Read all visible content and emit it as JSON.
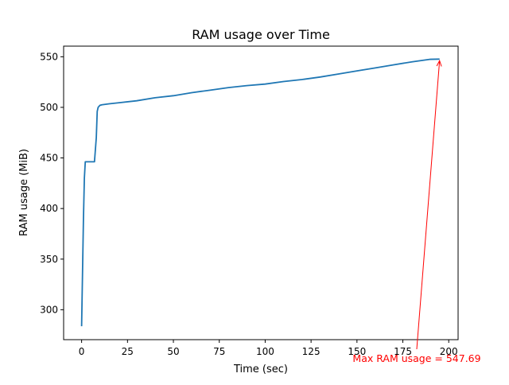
{
  "chart_data": {
    "type": "line",
    "title": "RAM usage over Time",
    "xlabel": "Time (sec)",
    "ylabel": "RAM usage (MiB)",
    "xlim": [
      -9.8,
      205.1
    ],
    "ylim": [
      270.4,
      560.5
    ],
    "x_ticks": [
      0,
      25,
      50,
      75,
      100,
      125,
      150,
      175,
      200
    ],
    "y_ticks": [
      300,
      350,
      400,
      450,
      500,
      550
    ],
    "grid": false,
    "legend": "none",
    "series": [
      {
        "color": "#1f77b4",
        "x": [
          0,
          1,
          1.5,
          2,
          7,
          8,
          8.5,
          9,
          10,
          11,
          15,
          20,
          30,
          40,
          50,
          60,
          70,
          80,
          90,
          100,
          110,
          120,
          130,
          140,
          150,
          160,
          170,
          180,
          190,
          195
        ],
        "y": [
          283.7,
          390,
          430,
          446.2,
          446.2,
          470,
          496,
          500,
          502,
          502.5,
          503.5,
          504.5,
          506.5,
          509.5,
          511.5,
          514.5,
          517,
          519.5,
          521.5,
          523,
          525.5,
          527.5,
          530,
          533,
          536,
          539,
          542,
          545,
          547.5,
          547.69
        ]
      }
    ],
    "annotation": {
      "text": "Max RAM usage = 547.69",
      "x": 195,
      "y": 547.69,
      "color": "#ff0000"
    }
  }
}
